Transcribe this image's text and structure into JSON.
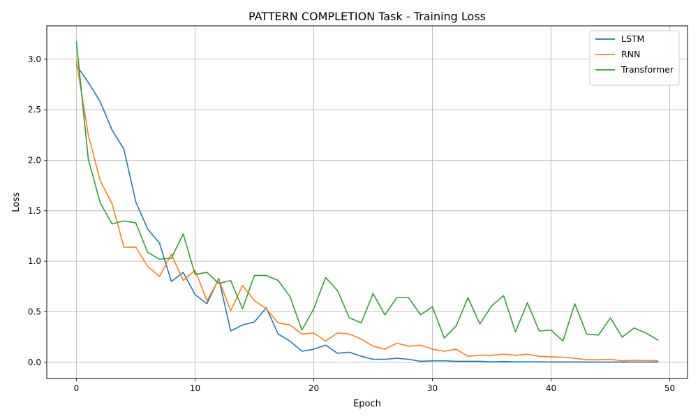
{
  "chart_data": {
    "type": "line",
    "title": "PATTERN COMPLETION Task - Training Loss",
    "xlabel": "Epoch",
    "ylabel": "Loss",
    "xlim": [
      -2.5,
      51.5
    ],
    "ylim": [
      -0.16,
      3.33
    ],
    "xticks": [
      0,
      10,
      20,
      30,
      40,
      50
    ],
    "yticks": [
      0.0,
      0.5,
      1.0,
      1.5,
      2.0,
      2.5,
      3.0
    ],
    "xtick_labels": [
      "0",
      "10",
      "20",
      "30",
      "40",
      "50"
    ],
    "ytick_labels": [
      "0.0",
      "0.5",
      "1.0",
      "1.5",
      "2.0",
      "2.5",
      "3.0"
    ],
    "grid": true,
    "legend_position": "top-right",
    "x": [
      0,
      1,
      2,
      3,
      4,
      5,
      6,
      7,
      8,
      9,
      10,
      11,
      12,
      13,
      14,
      15,
      16,
      17,
      18,
      19,
      20,
      21,
      22,
      23,
      24,
      25,
      26,
      27,
      28,
      29,
      30,
      31,
      32,
      33,
      34,
      35,
      36,
      37,
      38,
      39,
      40,
      41,
      42,
      43,
      44,
      45,
      46,
      47,
      48,
      49
    ],
    "series": [
      {
        "name": "LSTM",
        "color": "#1f77b4",
        "values": [
          2.94,
          2.77,
          2.58,
          2.3,
          2.11,
          1.59,
          1.32,
          1.18,
          0.8,
          0.89,
          0.67,
          0.58,
          0.83,
          0.31,
          0.37,
          0.4,
          0.54,
          0.28,
          0.21,
          0.11,
          0.13,
          0.17,
          0.09,
          0.1,
          0.06,
          0.03,
          0.03,
          0.04,
          0.03,
          0.01,
          0.015,
          0.015,
          0.01,
          0.01,
          0.01,
          0.005,
          0.008,
          0.005,
          0.005,
          0.005,
          0.004,
          0.004,
          0.004,
          0.003,
          0.003,
          0.003,
          0.003,
          0.003,
          0.003,
          0.003
        ]
      },
      {
        "name": "RNN",
        "color": "#ff7f0e",
        "values": [
          2.98,
          2.25,
          1.8,
          1.57,
          1.14,
          1.14,
          0.95,
          0.85,
          1.07,
          0.81,
          0.91,
          0.61,
          0.82,
          0.51,
          0.76,
          0.61,
          0.53,
          0.39,
          0.37,
          0.28,
          0.29,
          0.21,
          0.29,
          0.28,
          0.23,
          0.16,
          0.13,
          0.19,
          0.16,
          0.17,
          0.13,
          0.11,
          0.13,
          0.06,
          0.07,
          0.07,
          0.08,
          0.07,
          0.08,
          0.06,
          0.055,
          0.05,
          0.04,
          0.025,
          0.025,
          0.03,
          0.015,
          0.02,
          0.018,
          0.015
        ]
      },
      {
        "name": "Transformer",
        "color": "#2ca02c",
        "values": [
          3.17,
          2.01,
          1.58,
          1.37,
          1.4,
          1.38,
          1.09,
          1.02,
          1.03,
          1.27,
          0.87,
          0.89,
          0.78,
          0.81,
          0.53,
          0.86,
          0.86,
          0.81,
          0.65,
          0.32,
          0.53,
          0.84,
          0.71,
          0.44,
          0.39,
          0.68,
          0.47,
          0.64,
          0.64,
          0.47,
          0.55,
          0.24,
          0.36,
          0.64,
          0.38,
          0.56,
          0.66,
          0.3,
          0.59,
          0.31,
          0.32,
          0.21,
          0.58,
          0.28,
          0.27,
          0.44,
          0.25,
          0.34,
          0.29,
          0.22
        ]
      }
    ]
  }
}
